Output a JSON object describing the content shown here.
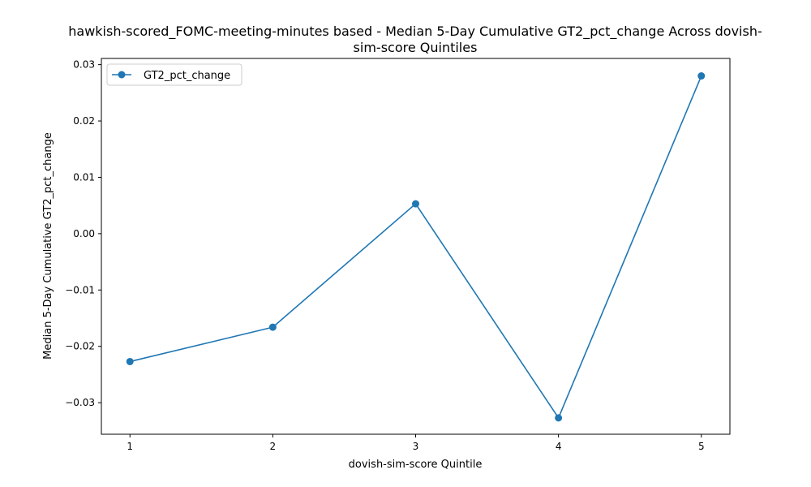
{
  "chart_data": {
    "type": "line",
    "title_lines": [
      "hawkish-scored_FOMC-meeting-minutes based - Median 5-Day Cumulative GT2_pct_change Across dovish-",
      "sim-score Quintiles"
    ],
    "xlabel": "dovish-sim-score Quintile",
    "ylabel": "Median 5-Day Cumulative GT2_pct_change",
    "x": [
      1,
      2,
      3,
      4,
      5
    ],
    "x_tick_labels": [
      "1",
      "2",
      "3",
      "4",
      "5"
    ],
    "y_ticks": [
      -0.03,
      -0.02,
      -0.01,
      0.0,
      0.01,
      0.02,
      0.03
    ],
    "y_tick_labels": [
      "−0.03",
      "−0.02",
      "−0.01",
      "0.00",
      "0.01",
      "0.02",
      "0.03"
    ],
    "xlim": [
      0.8,
      5.2
    ],
    "ylim": [
      -0.0356,
      0.0311
    ],
    "grid": false,
    "legend_position": "upper-left",
    "series": [
      {
        "name": "GT2_pct_change",
        "values": [
          -0.0227,
          -0.0166,
          0.0053,
          -0.0327,
          0.028
        ],
        "color": "#1f77b4",
        "marker": "circle"
      }
    ]
  }
}
